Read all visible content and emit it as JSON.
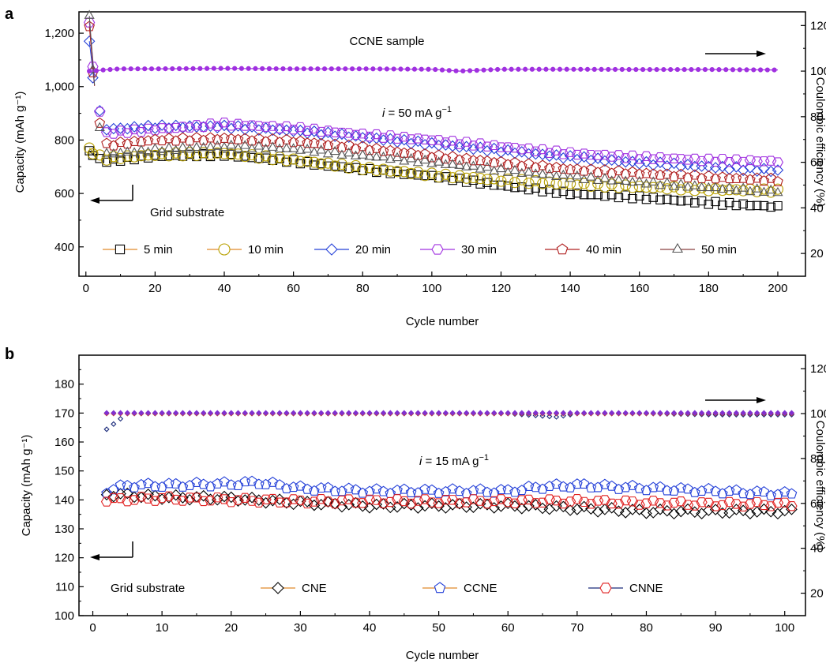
{
  "chart_data": [
    {
      "panel_label": "a",
      "type": "scatter",
      "xlabel": "Cycle number",
      "ylabel_left": "Capacity (mAh g⁻¹)",
      "ylabel_right": "Coulombic efficiency (%)",
      "xlim": [
        -2,
        208
      ],
      "ylim_left": [
        290,
        1280
      ],
      "ylim_right": [
        10,
        126
      ],
      "x_ticks": [
        "0",
        "20",
        "40",
        "60",
        "80",
        "100",
        "120",
        "140",
        "160",
        "180",
        "200"
      ],
      "y_left_ticks": [
        "400",
        "600",
        "800",
        "1,000",
        "1,200"
      ],
      "y_right_ticks": [
        "20",
        "40",
        "60",
        "80",
        "100",
        "120"
      ],
      "annotations": {
        "sample": "CCNE sample",
        "current": "i = 50 mA g⁻¹",
        "substrate": "Grid substrate"
      },
      "series": [
        {
          "name": "5 min",
          "marker": "square",
          "color": "#000000",
          "line_color": "#e08a2a",
          "initial": 760,
          "points": [
            [
              0,
              760
            ],
            [
              5,
              720
            ],
            [
              20,
              740
            ],
            [
              40,
              745
            ],
            [
              60,
              720
            ],
            [
              80,
              690
            ],
            [
              100,
              665
            ],
            [
              120,
              630
            ],
            [
              140,
              600
            ],
            [
              160,
              585
            ],
            [
              180,
              565
            ],
            [
              200,
              550
            ]
          ]
        },
        {
          "name": "10 min",
          "marker": "circle",
          "color": "#b8a000",
          "line_color": "#e08a2a",
          "initial": 770,
          "points": [
            [
              0,
              770
            ],
            [
              5,
              730
            ],
            [
              20,
              745
            ],
            [
              40,
              750
            ],
            [
              60,
              725
            ],
            [
              80,
              695
            ],
            [
              100,
              670
            ],
            [
              120,
              650
            ],
            [
              140,
              635
            ],
            [
              160,
              625
            ],
            [
              180,
              615
            ],
            [
              200,
              610
            ]
          ]
        },
        {
          "name": "20 min",
          "marker": "diamond",
          "color": "#2440d8",
          "line_color": "#2440d8",
          "initial": 1170,
          "points": [
            [
              0,
              1170
            ],
            [
              5,
              840
            ],
            [
              20,
              850
            ],
            [
              40,
              850
            ],
            [
              60,
              835
            ],
            [
              80,
              810
            ],
            [
              100,
              785
            ],
            [
              120,
              760
            ],
            [
              140,
              735
            ],
            [
              160,
              715
            ],
            [
              180,
              700
            ],
            [
              200,
              685
            ]
          ]
        },
        {
          "name": "30 min",
          "marker": "hexagon",
          "color": "#a030e0",
          "line_color": "#a030e0",
          "initial": 1240,
          "points": [
            [
              0,
              1240
            ],
            [
              5,
              825
            ],
            [
              20,
              840
            ],
            [
              40,
              860
            ],
            [
              60,
              845
            ],
            [
              80,
              820
            ],
            [
              100,
              800
            ],
            [
              120,
              775
            ],
            [
              140,
              750
            ],
            [
              160,
              735
            ],
            [
              180,
              725
            ],
            [
              200,
              720
            ]
          ]
        },
        {
          "name": "40 min",
          "marker": "pentagon",
          "color": "#b02020",
          "line_color": "#b02020",
          "initial": 1225,
          "points": [
            [
              0,
              1225
            ],
            [
              5,
              780
            ],
            [
              20,
              800
            ],
            [
              40,
              805
            ],
            [
              60,
              795
            ],
            [
              80,
              770
            ],
            [
              100,
              740
            ],
            [
              120,
              715
            ],
            [
              140,
              690
            ],
            [
              160,
              675
            ],
            [
              180,
              660
            ],
            [
              200,
              650
            ]
          ]
        },
        {
          "name": "50 min",
          "marker": "triangle",
          "color": "#555555",
          "line_color": "#8b4040",
          "initial": 1265,
          "points": [
            [
              0,
              1265
            ],
            [
              5,
              745
            ],
            [
              20,
              760
            ],
            [
              40,
              775
            ],
            [
              60,
              765
            ],
            [
              80,
              740
            ],
            [
              100,
              715
            ],
            [
              120,
              685
            ],
            [
              140,
              660
            ],
            [
              160,
              640
            ],
            [
              180,
              620
            ],
            [
              200,
              605
            ]
          ]
        }
      ],
      "coulombic_efficiency": {
        "axis": "right",
        "color": "#a030e0",
        "points": [
          [
            2,
            100
          ],
          [
            5,
            100.5
          ],
          [
            10,
            101
          ],
          [
            20,
            101
          ],
          [
            40,
            101.2
          ],
          [
            60,
            101
          ],
          [
            80,
            101
          ],
          [
            100,
            100.8
          ],
          [
            108,
            100
          ],
          [
            120,
            100.8
          ],
          [
            140,
            100.8
          ],
          [
            160,
            100.7
          ],
          [
            180,
            100.7
          ],
          [
            200,
            100.5
          ]
        ]
      }
    },
    {
      "panel_label": "b",
      "type": "scatter",
      "xlabel": "Cycle number",
      "ylabel_left": "Capacity (mAh g⁻¹)",
      "ylabel_right": "Coulombic efficiency (%)",
      "xlim": [
        -2,
        103
      ],
      "ylim_left": [
        100,
        190
      ],
      "ylim_right": [
        10,
        126
      ],
      "x_ticks": [
        "0",
        "10",
        "20",
        "30",
        "40",
        "50",
        "60",
        "70",
        "80",
        "90",
        "100"
      ],
      "y_left_ticks": [
        "100",
        "110",
        "120",
        "130",
        "140",
        "150",
        "160",
        "170",
        "180"
      ],
      "y_right_ticks": [
        "20",
        "40",
        "60",
        "80",
        "100",
        "120"
      ],
      "annotations": {
        "current": "i = 15 mA g⁻¹",
        "substrate": "Grid substrate"
      },
      "series": [
        {
          "name": "CNE",
          "marker": "diamond",
          "color": "#000000",
          "line_color": "#e08a2a",
          "points": [
            [
              2,
              142
            ],
            [
              10,
              141
            ],
            [
              20,
              140.5
            ],
            [
              30,
              139
            ],
            [
              40,
              138
            ],
            [
              50,
              138
            ],
            [
              60,
              138
            ],
            [
              70,
              137
            ],
            [
              80,
              136
            ],
            [
              90,
              136
            ],
            [
              100,
              136
            ]
          ]
        },
        {
          "name": "CCNE",
          "marker": "pentagon",
          "color": "#2440d8",
          "line_color": "#e08a2a",
          "points": [
            [
              2,
              143
            ],
            [
              5,
              145
            ],
            [
              10,
              145
            ],
            [
              20,
              145.5
            ],
            [
              24,
              146
            ],
            [
              30,
              144
            ],
            [
              40,
              143
            ],
            [
              50,
              143
            ],
            [
              60,
              143
            ],
            [
              65,
              144.5
            ],
            [
              70,
              145
            ],
            [
              80,
              144
            ],
            [
              90,
              143
            ],
            [
              100,
              142
            ]
          ]
        },
        {
          "name": "CNNE",
          "marker": "hexagon",
          "color": "#e02020",
          "line_color": "#1a2a7a",
          "points": [
            [
              2,
              140
            ],
            [
              10,
              140.5
            ],
            [
              20,
              140
            ],
            [
              30,
              139.5
            ],
            [
              40,
              139.5
            ],
            [
              50,
              139.5
            ],
            [
              60,
              139.5
            ],
            [
              70,
              139.5
            ],
            [
              80,
              139
            ],
            [
              90,
              138.5
            ],
            [
              100,
              138.5
            ]
          ]
        }
      ],
      "coulombic_efficiency": {
        "axis": "right",
        "series": [
          {
            "color": "#1a2a7a",
            "points": [
              [
                2,
                93
              ],
              [
                5,
                100
              ],
              [
                20,
                100
              ],
              [
                40,
                100
              ],
              [
                60,
                100
              ],
              [
                67,
                98.5
              ],
              [
                70,
                100
              ],
              [
                80,
                100
              ],
              [
                90,
                99.5
              ],
              [
                100,
                99.5
              ]
            ]
          },
          {
            "color": "#d04020",
            "points": [
              [
                2,
                100
              ],
              [
                20,
                100
              ],
              [
                40,
                100
              ],
              [
                60,
                100
              ],
              [
                80,
                100
              ],
              [
                100,
                100
              ]
            ]
          },
          {
            "color": "#8030d0",
            "points": [
              [
                2,
                100.3
              ],
              [
                20,
                100.3
              ],
              [
                40,
                100.3
              ],
              [
                60,
                100.3
              ],
              [
                80,
                100.3
              ],
              [
                100,
                100.3
              ]
            ]
          }
        ]
      }
    }
  ]
}
